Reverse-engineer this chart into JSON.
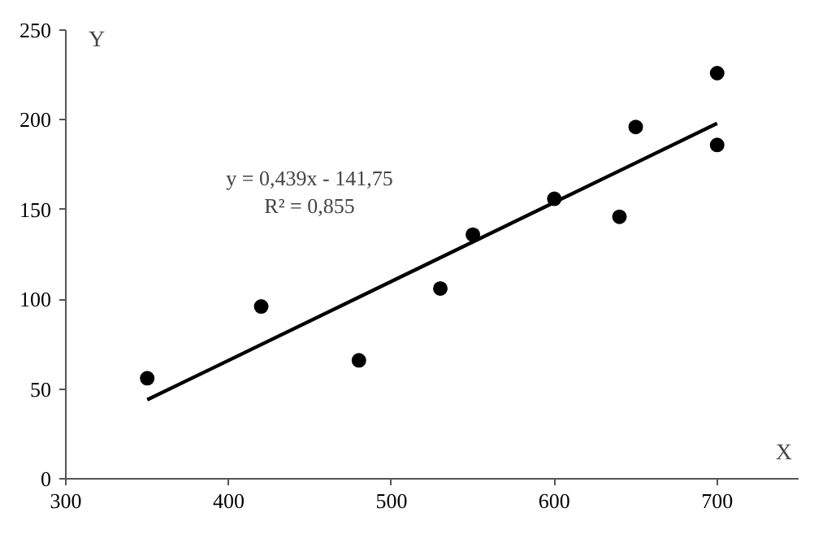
{
  "chart_data": {
    "type": "scatter",
    "xlabel": "X",
    "ylabel": "Y",
    "xlim": [
      300,
      750
    ],
    "xticks": [
      300,
      400,
      500,
      600,
      700
    ],
    "ylim": [
      0,
      250
    ],
    "yticks": [
      0,
      50,
      100,
      150,
      200,
      250
    ],
    "grid": false,
    "series": [
      {
        "marker": "circle",
        "color": "#000000",
        "x": [
          350,
          420,
          480,
          530,
          550,
          600,
          640,
          650,
          700,
          700
        ],
        "values": [
          56,
          96,
          66,
          106,
          136,
          156,
          146,
          196,
          186,
          226
        ]
      },
      {
        "type": "line",
        "marker": "none",
        "color": "#000000",
        "x": [
          350,
          700
        ],
        "values": [
          44,
          198
        ],
        "line_style": "solid"
      }
    ],
    "annotations": [
      "y = 0,439x - 141,75",
      "R² = 0,855"
    ]
  }
}
